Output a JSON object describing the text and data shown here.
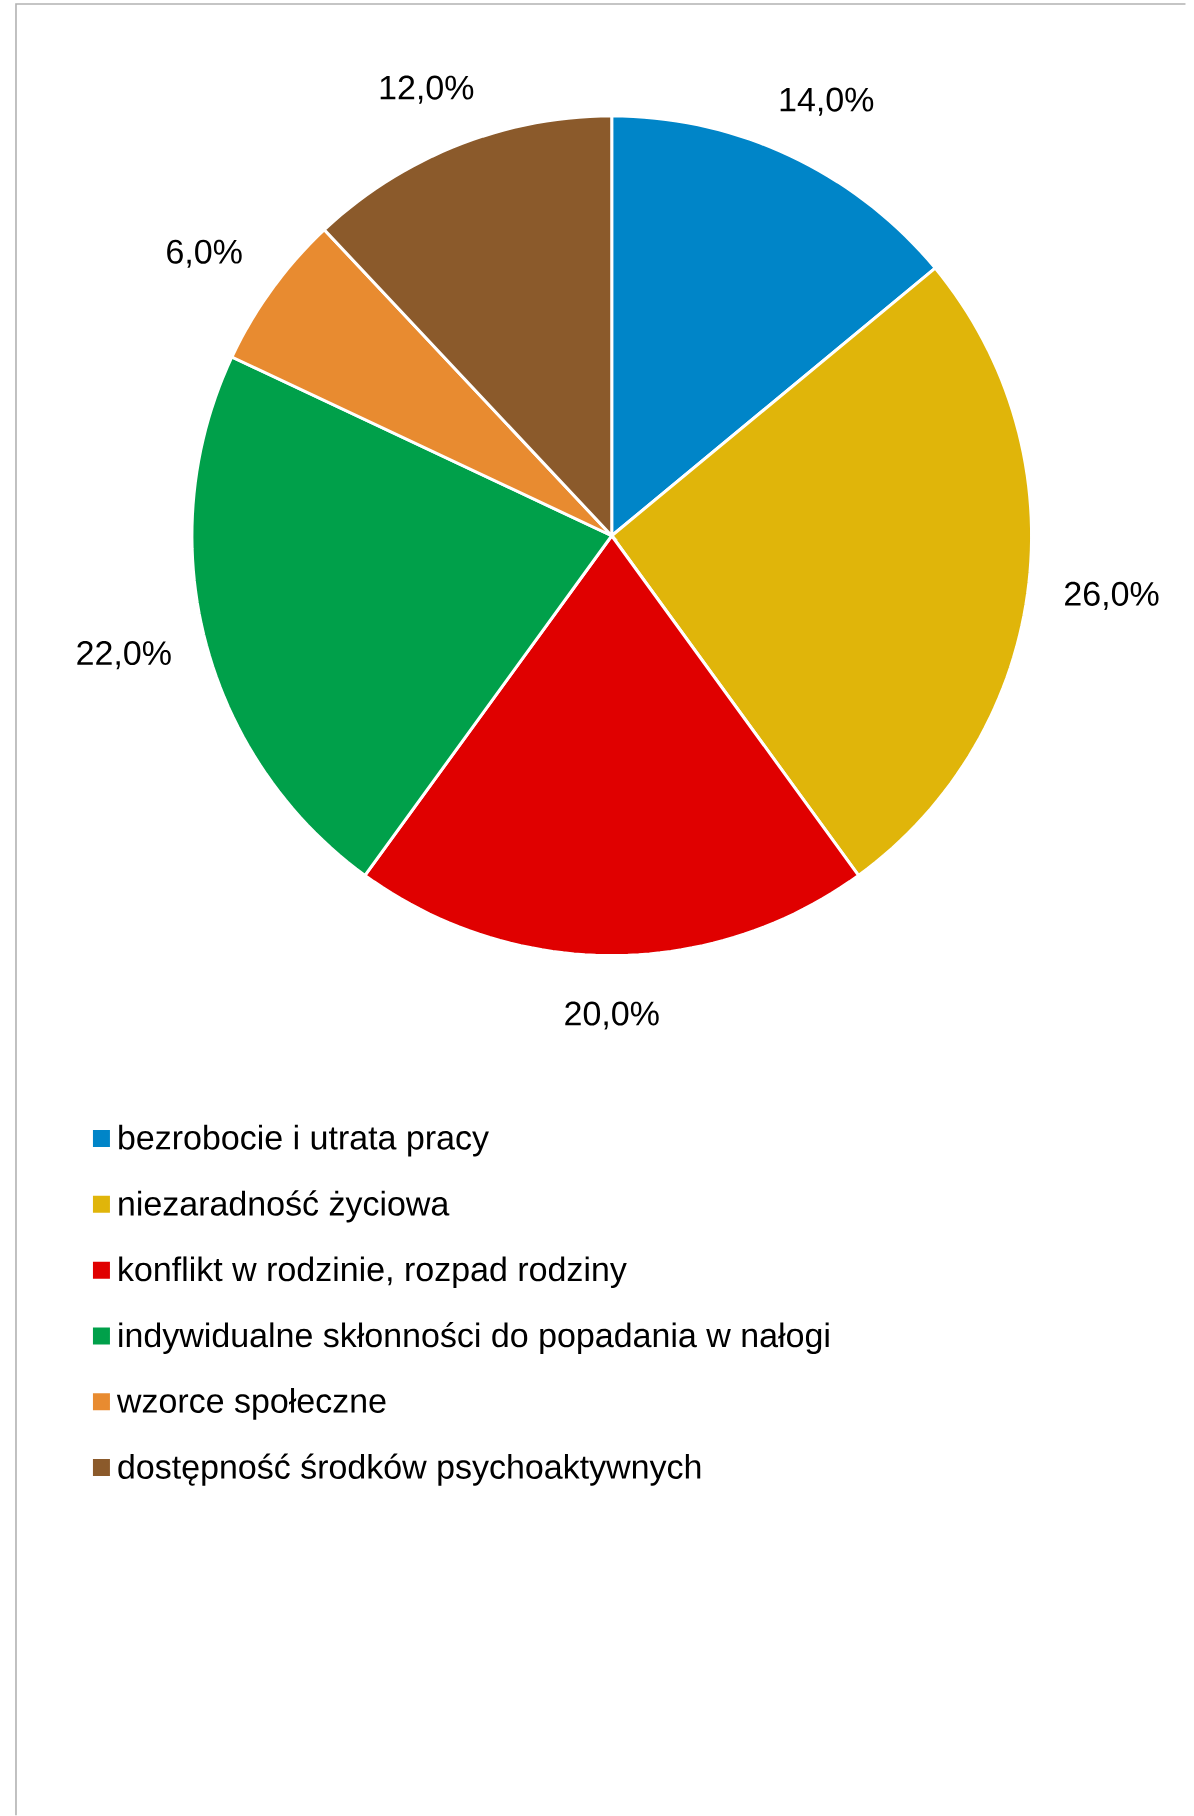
{
  "chart_data": {
    "type": "pie",
    "categories": [
      "bezrobocie i utrata pracy",
      "niezaradność życiowa",
      "konflikt w rodzinie, rozpad rodziny",
      "indywidualne skłonności do popadania w nałogi",
      "wzorce społeczne",
      "dostępność środków psychoaktywnych"
    ],
    "values": [
      14,
      26,
      20,
      22,
      6,
      12
    ],
    "value_labels": [
      "14,0%",
      "26,0%",
      "20,0%",
      "22,0%",
      "6,0%",
      "12,0%"
    ],
    "colors": [
      "#0085c8",
      "#e0b50a",
      "#e00000",
      "#00a04a",
      "#e88b30",
      "#8b5a2b"
    ],
    "legend": "bottom"
  }
}
